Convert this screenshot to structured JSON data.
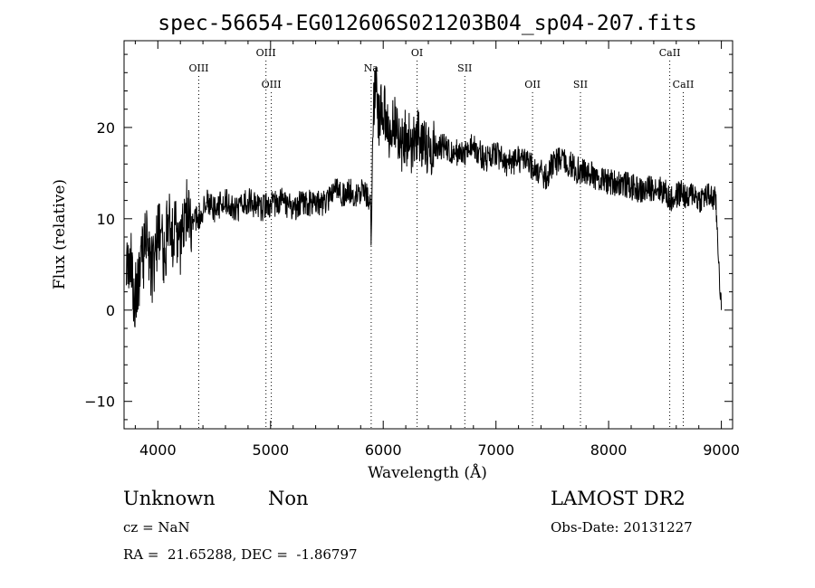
{
  "chart_data": {
    "type": "line",
    "title": "spec-56654-EG012606S021203B04_sp04-207.fits",
    "xlabel": "Wavelength (Å)",
    "ylabel": "Flux (relative)",
    "xlim": [
      3700,
      9100
    ],
    "ylim": [
      -13,
      29.5
    ],
    "x_ticks": [
      4000,
      5000,
      6000,
      7000,
      8000,
      9000
    ],
    "x_tick_labels": [
      "4000",
      "5000",
      "6000",
      "7000",
      "8000",
      "9000"
    ],
    "y_ticks": [
      -10,
      0,
      10,
      20
    ],
    "y_tick_labels": [
      "−10",
      "0",
      "10",
      "20"
    ],
    "grid": false,
    "line_color": "#000000",
    "series": [
      {
        "x": [
          3720,
          3760,
          3800,
          3850,
          3900,
          3950,
          4000,
          4050,
          4100,
          4150,
          4200,
          4250,
          4300,
          4350,
          4400,
          4450,
          4500,
          4600,
          4700,
          4800,
          4900,
          5000,
          5100,
          5200,
          5300,
          5400,
          5500,
          5550,
          5600,
          5650,
          5700,
          5750,
          5800,
          5850,
          5880,
          5895,
          5910,
          5930,
          5960,
          6000,
          6050,
          6100,
          6150,
          6200,
          6250,
          6300,
          6350,
          6400,
          6500,
          6600,
          6700,
          6800,
          6900,
          7000,
          7100,
          7200,
          7300,
          7400,
          7450,
          7500,
          7600,
          7700,
          7800,
          7900,
          8000,
          8100,
          8200,
          8300,
          8400,
          8500,
          8550,
          8600,
          8650,
          8700,
          8750,
          8800,
          8850,
          8900,
          8950,
          9000
        ],
        "y": [
          3,
          6,
          1,
          5,
          8,
          4,
          9,
          6,
          10,
          8,
          7,
          11,
          9,
          10,
          11,
          12,
          11,
          12,
          11,
          12,
          11,
          11.5,
          12,
          11,
          12,
          11.5,
          12,
          13,
          13,
          12.5,
          13,
          12.5,
          13,
          12.5,
          12,
          9,
          22,
          25,
          21,
          22,
          19.5,
          21,
          18,
          19,
          18,
          19,
          18.5,
          17.5,
          18,
          17.5,
          17,
          18,
          16.5,
          17,
          16,
          16.5,
          16,
          15,
          14.5,
          16,
          16.5,
          15.5,
          15,
          14.5,
          14,
          14,
          13.5,
          13,
          13.5,
          13,
          12,
          12.5,
          13,
          12,
          13,
          12,
          12.5,
          12.5,
          12,
          0
        ]
      }
    ],
    "line_ids": [
      {
        "label": "OIII",
        "x": 4363,
        "row": "high"
      },
      {
        "label": "OIII",
        "x": 4959,
        "row": "top"
      },
      {
        "label": "OIII",
        "x": 5007,
        "row": "low"
      },
      {
        "label": "Na",
        "x": 5893,
        "row": "high"
      },
      {
        "label": "OI",
        "x": 6300,
        "row": "top"
      },
      {
        "label": "SII",
        "x": 6724,
        "row": "high"
      },
      {
        "label": "OII",
        "x": 7325,
        "row": "low"
      },
      {
        "label": "SII",
        "x": 7750,
        "row": "low"
      },
      {
        "label": "CaII",
        "x": 8542,
        "row": "top"
      },
      {
        "label": "CaII",
        "x": 8662,
        "row": "low"
      }
    ]
  },
  "footer": {
    "object_class": "Unknown",
    "subclass": "Non",
    "cz": "cz = NaN",
    "coords": "RA =  21.65288, DEC =  -1.86797",
    "survey": "LAMOST DR2",
    "obs_date": "Obs-Date: 20131227"
  }
}
